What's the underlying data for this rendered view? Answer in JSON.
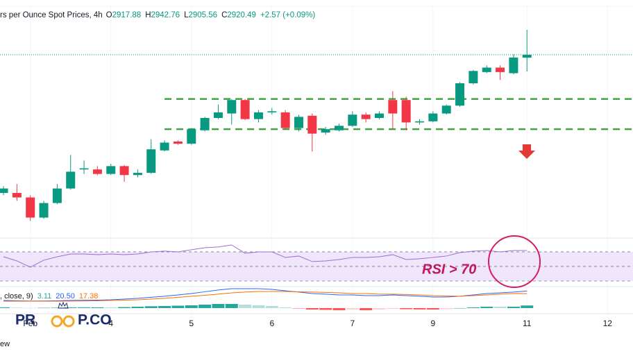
{
  "chart_data": {
    "type": "candlestick",
    "title": "rs per Ounce Spot Prices, 4h",
    "ohlc_header": [
      {
        "label": "O",
        "value": "2917.88"
      },
      {
        "label": "H",
        "value": "2942.76"
      },
      {
        "label": "L",
        "value": "2905.56"
      },
      {
        "label": "C",
        "value": "2920.49"
      }
    ],
    "change": "+2.57 (+0.09%)",
    "x": [
      0,
      1,
      2,
      3,
      4,
      5,
      6,
      7,
      8,
      9,
      10,
      11,
      12,
      13,
      14,
      15,
      16,
      17,
      18,
      19,
      20,
      21,
      22,
      23,
      24,
      25,
      26,
      27,
      28,
      29,
      30,
      31,
      32,
      33,
      34,
      35,
      36,
      37,
      38,
      39
    ],
    "candles": {
      "open": [
        2797,
        2797,
        2793,
        2775,
        2788,
        2801,
        2818,
        2818,
        2814,
        2821,
        2813,
        2815,
        2835,
        2843,
        2841,
        2853,
        2864,
        2868,
        2880,
        2863,
        2869,
        2869,
        2855,
        2866,
        2851,
        2853,
        2857,
        2867,
        2864,
        2880,
        2880,
        2860,
        2861,
        2868,
        2875,
        2895,
        2905,
        2909,
        2904,
        2917.88
      ],
      "high": [
        2803,
        2805,
        2795,
        2790,
        2805,
        2831,
        2826,
        2821,
        2823,
        2822,
        2818,
        2845,
        2844,
        2844,
        2855,
        2865,
        2876,
        2881,
        2881,
        2871,
        2873,
        2871,
        2867,
        2868,
        2856,
        2859,
        2870,
        2869,
        2870,
        2888,
        2883,
        2863,
        2870,
        2876,
        2896,
        2907,
        2911,
        2911,
        2921,
        2942.76
      ],
      "low": [
        2795,
        2790,
        2772,
        2774,
        2787,
        2800,
        2814,
        2813,
        2813,
        2807,
        2811,
        2814,
        2834,
        2840,
        2840,
        2852,
        2863,
        2858,
        2862,
        2860,
        2867,
        2854,
        2852,
        2834,
        2849,
        2852,
        2856,
        2860,
        2863,
        2854,
        2853,
        2858,
        2860,
        2867,
        2874,
        2894,
        2904,
        2898,
        2903,
        2905.56
      ],
      "close": [
        2801,
        2793,
        2775,
        2788,
        2801,
        2816,
        2819,
        2814,
        2821,
        2813,
        2815,
        2836,
        2842,
        2841,
        2854,
        2864,
        2869,
        2880,
        2863,
        2869,
        2870,
        2855,
        2865,
        2850,
        2854,
        2857,
        2867,
        2863,
        2868,
        2868,
        2860,
        2861,
        2868,
        2875,
        2895,
        2906,
        2909,
        2905,
        2918,
        2920.49
      ]
    },
    "up_color": "#089981",
    "down_color": "#f23645",
    "xlim": [
      -0.26,
      46.9
    ],
    "ylim": [
      2758.6,
      2969.4
    ],
    "xticks": [
      {
        "value": 2,
        "label": "Feb"
      },
      {
        "value": 8,
        "label": "4"
      },
      {
        "value": 14,
        "label": "5"
      },
      {
        "value": 20,
        "label": "6"
      },
      {
        "value": 26,
        "label": "7"
      },
      {
        "value": 32,
        "label": "9"
      },
      {
        "value": 39,
        "label": "11"
      },
      {
        "value": 45,
        "label": "12"
      }
    ],
    "levels": [
      2881,
      2854
    ],
    "level_start": 12,
    "level_color": "#43a047",
    "annotation": "RSI > 70",
    "rsi": {
      "values": [
        63.3,
        57.6,
        49,
        58.6,
        63.3,
        67.1,
        67.1,
        66.2,
        67.1,
        66.2,
        67.1,
        70,
        71,
        70,
        72.9,
        75.7,
        76.7,
        79.5,
        68.1,
        70,
        70,
        62.4,
        64.3,
        56.7,
        57.6,
        59.5,
        62.4,
        62.4,
        63.3,
        66.2,
        59.5,
        60.5,
        62.4,
        64.3,
        69,
        71,
        71.9,
        70,
        71.9,
        71.9
      ],
      "ylim": [
        23.3,
        87.1
      ],
      "levels": [
        70,
        50,
        30
      ],
      "color": "#9b6fd3",
      "band_color": "#efe6fb"
    },
    "macd": {
      "legend_prefix": ", close, 9)",
      "legend_values": [
        "3.11",
        "20.50",
        "17.38"
      ],
      "histogram": [
        0.9,
        0.5,
        0.2,
        0.3,
        0.5,
        0.8,
        0.9,
        0.9,
        0.8,
        1.2,
        1.7,
        2.2,
        2.5,
        2.9,
        3.3,
        4.2,
        5,
        5,
        4.1,
        3.3,
        2.5,
        0.8,
        -0.4,
        -1.7,
        -2.1,
        -2.5,
        -1.7,
        -2.5,
        -1.7,
        -0.9,
        -1.3,
        -1.6,
        -1.7,
        -1.3,
        0,
        0.8,
        1.7,
        1.6,
        1.7,
        3.11
      ],
      "macd": [
        9.2,
        8.8,
        8.5,
        8.6,
        8.8,
        9.2,
        9.4,
        9.6,
        10,
        10.8,
        11.7,
        13,
        14.2,
        15.8,
        17.5,
        19.6,
        21.7,
        23.3,
        23.3,
        23.3,
        22.5,
        20.8,
        19.2,
        17.5,
        16.7,
        15.8,
        15.8,
        15,
        15,
        15.8,
        15,
        14.2,
        13.3,
        13.3,
        14.2,
        15.8,
        17.5,
        18.3,
        19.2,
        20.5
      ],
      "signal": [
        8.3,
        8.3,
        8.3,
        8.3,
        8.3,
        8.4,
        8.5,
        8.7,
        9.2,
        9.6,
        10,
        10.8,
        11.7,
        12.9,
        14.2,
        15.4,
        16.7,
        18.3,
        19.2,
        20,
        20,
        20,
        19.6,
        19.2,
        18.8,
        18.3,
        17.5,
        17.5,
        16.7,
        16.7,
        16.3,
        15.8,
        15,
        14.6,
        14.2,
        15,
        15.8,
        16.7,
        17.5,
        17.38
      ],
      "ylim": [
        -6.7,
        25.8
      ],
      "macd_color": "#2962ff",
      "signal_color": "#ff6d00",
      "hist_colors": [
        "#26a69a",
        "#b2dfdb",
        "#ff5252",
        "#ffcdd2"
      ]
    },
    "logo": [
      "PR",
      "P.CO"
    ],
    "footer": "ew"
  }
}
